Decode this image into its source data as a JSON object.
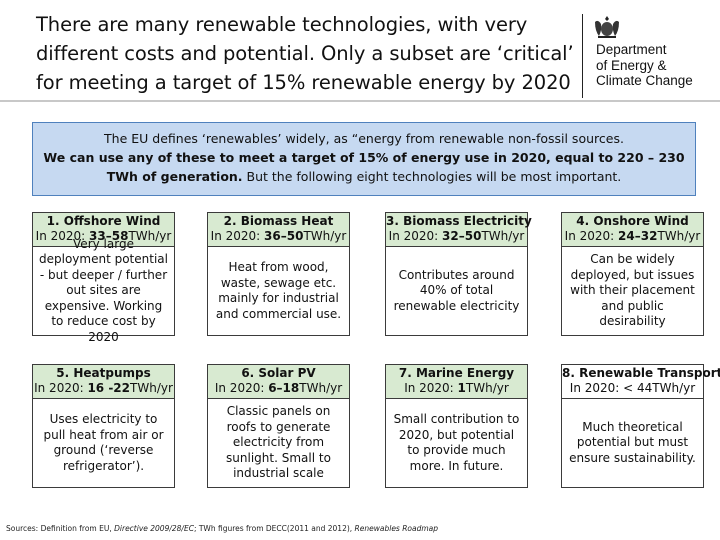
{
  "title": "There are many renewable technologies, with very different costs and potential. Only a subset are ‘critical’ for meeting a target of 15% renewable energy by 2020",
  "department": {
    "line1": "Department",
    "line2": "of Energy &",
    "line3": "Climate Change"
  },
  "intro": {
    "part1": "The EU defines ‘renewables’ widely, as “energy from renewable non-fossil sources.",
    "part2_bold": "We can use any of these to meet a target of 15% of energy use in 2020, equal to 220 – 230 TWh of generation.",
    "part3": " But the following eight technologies will be most important."
  },
  "est_prefix": "In 2020: ",
  "est_unit": "TWh/yr",
  "cards": [
    {
      "name": "1. Offshore Wind",
      "estimate": "33–58",
      "body": "Very large deployment potential - but deeper / further out sites are expensive. Working to reduce cost by 2020"
    },
    {
      "name": "2. Biomass Heat",
      "estimate": "36–50",
      "body": "Heat from wood, waste, sewage etc. mainly for industrial and commercial use."
    },
    {
      "name": "3. Biomass Electricity",
      "estimate": "32–50",
      "body": "Contributes around 40% of total renewable electricity"
    },
    {
      "name": "4. Onshore Wind",
      "estimate": "24–32",
      "body": "Can be widely deployed, but issues with their placement and public desirability"
    },
    {
      "name": "5. Heatpumps",
      "estimate": "16 -22",
      "body": "Uses electricity to pull heat from air or ground (‘reverse refrigerator’)."
    },
    {
      "name": "6. Solar PV",
      "estimate": "6–18",
      "body": "Classic panels on roofs to generate electricity from sunlight. Small to industrial scale"
    },
    {
      "name": "7. Marine Energy",
      "estimate": "1",
      "body": "Small contribution to 2020, but potential to provide much more. In future."
    },
    {
      "name": "8. Renewable Transport",
      "estimate": "< 44",
      "body": "Much theoretical potential but must ensure sustainability."
    }
  ],
  "sources": {
    "a": "Sources: Definition from EU, ",
    "b_italic": "Directive 2009/28/EC",
    "c": "; TWh figures from DECC(2011 and 2012), ",
    "d_italic": "Renewables Roadmap"
  }
}
